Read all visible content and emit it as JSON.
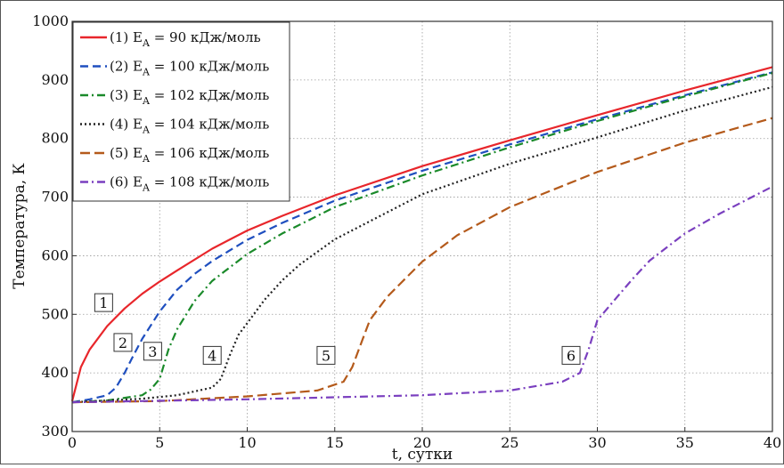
{
  "chart_data": {
    "type": "line",
    "xlabel": "t, сутки",
    "ylabel": "Температура, К",
    "xlim": [
      0,
      40
    ],
    "ylim": [
      300,
      1000
    ],
    "x_ticks": [
      "0",
      "5",
      "10",
      "15",
      "20",
      "25",
      "30",
      "35",
      "40"
    ],
    "y_ticks": [
      "300",
      "400",
      "500",
      "600",
      "700",
      "800",
      "900",
      "1000"
    ],
    "grid": true,
    "legend_position": "top-left",
    "series": [
      {
        "name": "(1) E_A = 90 кДж/моль",
        "legend": {
          "prefix": "(1) E",
          "sub": "A",
          "suffix": " = 90 кДж/моль"
        },
        "curve_label": "1",
        "color": "#e8262b",
        "dash": "solid",
        "x": [
          0,
          0.5,
          1,
          2,
          3,
          4,
          5,
          6,
          8,
          10,
          12,
          15,
          20,
          25,
          30,
          35,
          40
        ],
        "y": [
          352,
          410,
          440,
          480,
          510,
          535,
          556,
          575,
          612,
          643,
          668,
          703,
          753,
          797,
          840,
          882,
          922
        ]
      },
      {
        "name": "(2) E_A = 100 кДж/моль",
        "legend": {
          "prefix": "(2) E",
          "sub": "A",
          "suffix": " = 100 кДж/моль"
        },
        "curve_label": "2",
        "color": "#1f4fbf",
        "dash": "dashed",
        "x": [
          0,
          1,
          2,
          2.5,
          3,
          3.5,
          4,
          5,
          6,
          7,
          8,
          10,
          12,
          15,
          20,
          25,
          30,
          35,
          40
        ],
        "y": [
          350,
          355,
          362,
          375,
          400,
          430,
          458,
          505,
          542,
          569,
          591,
          627,
          656,
          694,
          745,
          790,
          833,
          874,
          913
        ]
      },
      {
        "name": "(3) E_A = 102 кДж/моль",
        "legend": {
          "prefix": "(3) E",
          "sub": "A",
          "suffix": " = 102 кДж/моль"
        },
        "curve_label": "3",
        "color": "#1a8a2a",
        "dash": "dashdot",
        "x": [
          0,
          2,
          4,
          4.5,
          5,
          5.5,
          6,
          7,
          8,
          10,
          12,
          15,
          20,
          25,
          30,
          35,
          40
        ],
        "y": [
          350,
          353,
          362,
          372,
          390,
          440,
          475,
          523,
          557,
          603,
          638,
          683,
          737,
          785,
          830,
          872,
          912
        ]
      },
      {
        "name": "(4) E_A = 104 кДж/моль",
        "legend": {
          "prefix": "(4) E",
          "sub": "A",
          "suffix": " = 104 кДж/моль"
        },
        "curve_label": "4",
        "color": "#222222",
        "dash": "dotted",
        "x": [
          0,
          4,
          6,
          8,
          8.5,
          9,
          9.5,
          10,
          11,
          12,
          13,
          15,
          20,
          25,
          30,
          35,
          40
        ],
        "y": [
          350,
          356,
          362,
          375,
          390,
          430,
          465,
          485,
          525,
          558,
          585,
          628,
          705,
          757,
          802,
          848,
          888
        ]
      },
      {
        "name": "(5) E_A = 106 кДж/моль",
        "legend": {
          "prefix": "(5) E",
          "sub": "A",
          "suffix": " = 106 кДж/моль"
        },
        "curve_label": "5",
        "color": "#b45a1b",
        "dash": "longdash",
        "x": [
          0,
          5,
          10,
          14,
          15.5,
          16,
          16.5,
          17,
          18,
          20,
          22,
          25,
          30,
          35,
          40
        ],
        "y": [
          350,
          352,
          360,
          370,
          385,
          410,
          450,
          490,
          530,
          590,
          635,
          683,
          743,
          793,
          835
        ]
      },
      {
        "name": "(6) E_A = 108 кДж/моль",
        "legend": {
          "prefix": "(6) E",
          "sub": "A",
          "suffix": " = 108 кДж/моль"
        },
        "curve_label": "6",
        "color": "#7a3fbf",
        "dash": "dashdot",
        "x": [
          0,
          10,
          20,
          25,
          28,
          29,
          29.5,
          30,
          31,
          32,
          33,
          35,
          37,
          40
        ],
        "y": [
          350,
          355,
          362,
          370,
          385,
          400,
          440,
          490,
          525,
          560,
          592,
          638,
          672,
          718
        ]
      }
    ]
  }
}
